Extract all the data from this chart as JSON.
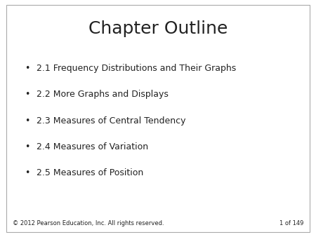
{
  "title": "Chapter Outline",
  "title_fontsize": 18,
  "background_color": "#ffffff",
  "text_color": "#222222",
  "bullet_items": [
    "2.1 Frequency Distributions and Their Graphs",
    "2.2 More Graphs and Displays",
    "2.3 Measures of Central Tendency",
    "2.4 Measures of Variation",
    "2.5 Measures of Position"
  ],
  "bullet_fontsize": 9,
  "bullet_symbol": "•",
  "footer_left": "© 2012 Pearson Education, Inc. All rights reserved.",
  "footer_right": "1 of 149",
  "footer_fontsize": 6,
  "border_color": "#aaaaaa",
  "border_linewidth": 0.8
}
